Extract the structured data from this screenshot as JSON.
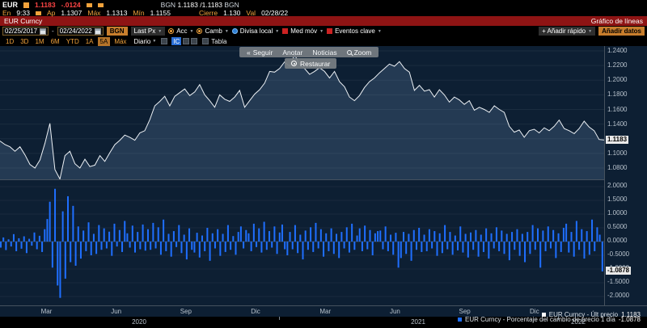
{
  "quote": {
    "symbol": "EUR",
    "last": "1.1183",
    "change": "-.0124",
    "bidask": {
      "src_l": "BGN",
      "bid": "1.1183",
      "ask": "/1.1183",
      "src_r": "BGN"
    },
    "row2": {
      "en_label": "En",
      "en": "9:33",
      "ap_label": "Ap",
      "ap": "1.1307",
      "max_label": "Máx",
      "max": "1.1313",
      "min_label": "Mín",
      "min": "1.1155",
      "close_label": "Cierre",
      "close": "1.130",
      "val_label": "Val",
      "val": "02/28/22"
    }
  },
  "titlebar": {
    "left": "EUR Curncy",
    "right": "Gráfico de líneas"
  },
  "toolbar": {
    "date_from": "02/25/2017",
    "sep": "-",
    "date_to": "02/24/2022",
    "source": "BGN",
    "price_type": "Last Px",
    "acc": "Acc",
    "camb": "Camb",
    "currency": "Divisa local",
    "mavg": "Med móv",
    "events": "Eventos clave",
    "add_quick": "+ Añadir rápido",
    "add_data": "Añadir datos"
  },
  "periods": {
    "items": [
      "1D",
      "3D",
      "1M",
      "6M",
      "YTD",
      "1A",
      "5A",
      "Máx"
    ],
    "selected": "5A",
    "freq": "Diario",
    "ic": "IC",
    "tabla": "Tabla"
  },
  "overlay": {
    "seguir": "Seguir",
    "anotar": "Anotar",
    "noticias": "Noticias",
    "zoom": "Zoom",
    "restaurar": "Restaurar",
    "chevrons": "«"
  },
  "legends": {
    "main_label": "EUR Curncy - Últ precio",
    "main_value": "1.1183",
    "lower_label": "EUR Curncy - Porcentaje del cambio de precio 1 día",
    "lower_value": "-1.0878"
  },
  "axes": {
    "price_ticks": [
      1.24,
      1.22,
      1.2,
      1.18,
      1.16,
      1.14,
      1.12,
      1.1,
      1.08
    ],
    "pct_ticks": [
      2.0,
      1.5,
      1.0,
      0.5,
      0.0,
      -0.5,
      -1.0,
      -1.5,
      -2.0
    ],
    "price_tag": "1.1183",
    "pct_tag": "-1.0878",
    "months": [
      "Mar",
      "Jun",
      "Sep",
      "Dic",
      "Mar",
      "Jun",
      "Sep",
      "Dic"
    ],
    "years": [
      "2020",
      "2021",
      "2022"
    ]
  },
  "chart_data": [
    {
      "type": "line",
      "name": "EUR Curncy - Últ precio",
      "x_range": [
        "2020-01",
        "2022-02"
      ],
      "ylim": [
        1.08,
        1.24
      ],
      "last": 1.1183,
      "values": [
        1.117,
        1.112,
        1.109,
        1.103,
        1.109,
        1.098,
        1.085,
        1.08,
        1.091,
        1.114,
        1.141,
        1.078,
        1.065,
        1.097,
        1.103,
        1.086,
        1.08,
        1.092,
        1.082,
        1.084,
        1.097,
        1.089,
        1.101,
        1.112,
        1.118,
        1.125,
        1.122,
        1.118,
        1.128,
        1.131,
        1.146,
        1.165,
        1.171,
        1.178,
        1.165,
        1.178,
        1.183,
        1.188,
        1.179,
        1.184,
        1.194,
        1.18,
        1.172,
        1.163,
        1.18,
        1.174,
        1.171,
        1.177,
        1.186,
        1.163,
        1.172,
        1.181,
        1.187,
        1.196,
        1.212,
        1.211,
        1.216,
        1.225,
        1.219,
        1.2349,
        1.222,
        1.216,
        1.208,
        1.212,
        1.217,
        1.212,
        1.203,
        1.212,
        1.198,
        1.191,
        1.177,
        1.172,
        1.179,
        1.19,
        1.198,
        1.203,
        1.21,
        1.216,
        1.222,
        1.219,
        1.2254,
        1.216,
        1.211,
        1.186,
        1.193,
        1.185,
        1.187,
        1.177,
        1.187,
        1.18,
        1.17,
        1.177,
        1.173,
        1.167,
        1.172,
        1.159,
        1.163,
        1.16,
        1.156,
        1.165,
        1.16,
        1.156,
        1.137,
        1.129,
        1.132,
        1.122,
        1.131,
        1.133,
        1.128,
        1.135,
        1.131,
        1.137,
        1.1455,
        1.134,
        1.131,
        1.127,
        1.134,
        1.144,
        1.136,
        1.131,
        1.119,
        1.1183
      ]
    },
    {
      "type": "bar",
      "name": "EUR Curncy - Porcentaje del cambio de precio 1 día",
      "ylim": [
        -2.0,
        2.0
      ],
      "last": -1.0878,
      "values": [
        -0.22,
        0.15,
        -0.31,
        0.08,
        -0.18,
        0.27,
        -0.35,
        0.12,
        -0.26,
        0.19,
        -0.42,
        0.1,
        -0.15,
        0.33,
        -0.28,
        0.21,
        -0.38,
        0.45,
        0.82,
        1.45,
        -0.95,
        1.92,
        -1.6,
        -2.05,
        1.1,
        -1.35,
        1.65,
        -0.75,
        1.3,
        -0.88,
        0.55,
        -0.62,
        0.4,
        -0.35,
        0.7,
        -0.5,
        0.28,
        -0.45,
        0.6,
        -0.3,
        0.48,
        -0.25,
        0.36,
        -0.52,
        0.65,
        -0.18,
        0.42,
        -0.38,
        0.75,
        0.3,
        -0.22,
        0.58,
        -0.4,
        0.35,
        -0.28,
        0.62,
        -0.33,
        0.45,
        -0.3,
        0.68,
        -0.25,
        0.52,
        -0.48,
        0.8,
        -0.35,
        0.28,
        -0.55,
        0.38,
        -0.2,
        0.6,
        -0.42,
        0.25,
        -0.65,
        0.48,
        -0.3,
        -0.4,
        0.32,
        -0.58,
        0.22,
        -0.35,
        0.5,
        -0.7,
        0.3,
        -0.25,
        0.45,
        -0.52,
        0.28,
        -0.38,
        0.6,
        -0.3,
        0.2,
        -0.48,
        0.35,
        0.55,
        -0.25,
        0.42,
        0.3,
        -0.35,
        0.65,
        -0.2,
        0.48,
        -0.4,
        0.72,
        -0.3,
        0.38,
        -0.22,
        0.55,
        -0.45,
        0.33,
        0.62,
        -0.28,
        -0.5,
        0.35,
        -0.28,
        0.6,
        -0.42,
        0.25,
        -0.65,
        0.4,
        -0.3,
        0.52,
        -0.38,
        0.68,
        -0.25,
        0.45,
        -0.55,
        0.3,
        -0.35,
        0.48,
        -0.45,
        0.28,
        -0.6,
        0.35,
        -0.25,
        0.52,
        -0.4,
        0.65,
        -0.3,
        0.22,
        0.48,
        -0.35,
        0.58,
        -0.28,
        0.42,
        -0.5,
        0.3,
        0.38,
        0.4,
        -0.28,
        0.55,
        -0.35,
        0.25,
        -0.48,
        0.32,
        -0.95,
        -0.6,
        0.35,
        -0.45,
        0.28,
        -0.7,
        0.42,
        -0.3,
        0.5,
        -0.38,
        0.25,
        -0.35,
        0.45,
        -0.25,
        0.38,
        -0.52,
        0.3,
        -0.42,
        0.6,
        -0.28,
        0.35,
        -0.48,
        0.22,
        -0.32,
        0.55,
        -0.4,
        0.28,
        -0.58,
        0.33,
        -0.3,
        0.42,
        -0.55,
        0.25,
        -0.38,
        0.48,
        -0.62,
        0.3,
        -0.25,
        0.52,
        -0.35,
        0.4,
        -0.45,
        0.28,
        -0.68,
        0.35,
        -0.3,
        0.45,
        -0.52,
        0.28,
        -0.75,
        0.35,
        -0.45,
        0.6,
        -0.3,
        0.48,
        -0.95,
        0.4,
        -0.35,
        0.55,
        -0.25,
        0.42,
        -0.6,
        0.3,
        -0.38,
        0.5,
        0.65,
        -0.4,
        0.35,
        -0.55,
        0.75,
        -0.3,
        0.45,
        -0.62,
        0.38,
        -0.48,
        0.8,
        -0.35,
        0.52,
        0.25,
        -1.0878
      ]
    }
  ],
  "colors": {
    "panel_bg": "#0d1f33",
    "bar_blue": "#1f6fff",
    "line": "#edf1f5",
    "amber": "#f2a33c",
    "red_bar": "#8e1414",
    "neg_red": "#ff4545"
  }
}
